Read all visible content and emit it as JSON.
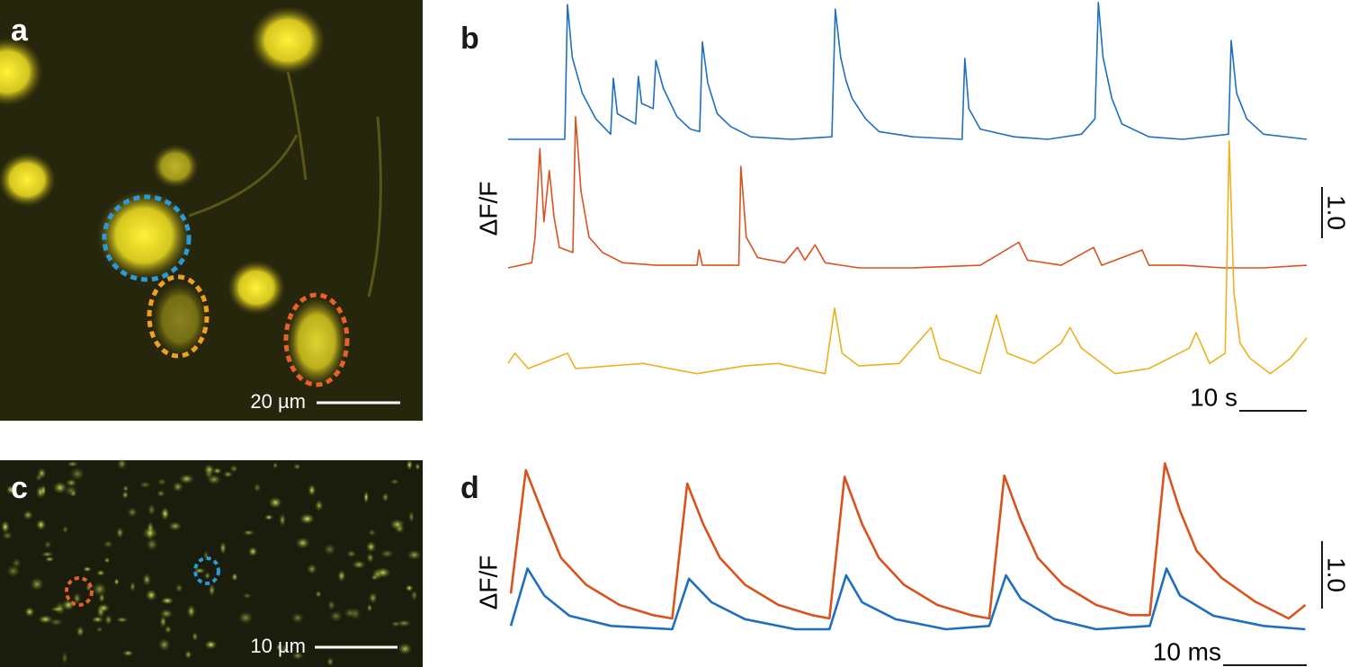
{
  "images": [
    {
      "label": "a",
      "scale_bar": "20 µm"
    },
    {
      "label": "c",
      "scale_bar": "10 µm"
    }
  ],
  "chart_data": [
    {
      "type": "line",
      "panel_label": "b",
      "y_label": "ΔF/F",
      "y_scale": {
        "value": 1,
        "label": "1.0"
      },
      "x_scale": {
        "value": 10,
        "label": "10 s"
      },
      "series": [
        {
          "color": "#1f6fbf",
          "x": [
            0,
            8.4,
            8.8,
            9.5,
            11,
            13,
            15.2,
            15.6,
            16.2,
            18.9,
            19.3,
            19.8,
            21.5,
            21.9,
            23,
            25,
            27,
            28.4,
            28.8,
            29.6,
            31,
            33,
            36,
            42,
            48,
            48.5,
            49.3,
            50.1,
            51,
            53,
            55,
            60,
            67.3,
            67.7,
            68.3,
            70,
            75,
            80,
            85,
            87,
            87.5,
            88.2,
            89.5,
            91,
            95,
            100,
            106.8,
            107.2,
            108,
            109.5,
            112,
            118.4
          ],
          "values": [
            0,
            0,
            2.63,
            1.6,
            0.9,
            0.4,
            0.1,
            1.19,
            0.5,
            0.3,
            1.23,
            0.7,
            0.6,
            1.54,
            1.0,
            0.45,
            0.2,
            0.15,
            1.9,
            1.1,
            0.5,
            0.25,
            0.05,
            0,
            0.05,
            2.54,
            1.6,
            1.14,
            0.8,
            0.4,
            0.15,
            0.05,
            0,
            1.58,
            0.6,
            0.2,
            0.05,
            0,
            0.1,
            0.4,
            2.67,
            1.6,
            0.8,
            0.3,
            0.05,
            0,
            0.1,
            1.93,
            0.9,
            0.4,
            0.1,
            0
          ]
        },
        {
          "color": "#d9531e",
          "x": [
            0,
            3.5,
            4.0,
            4.7,
            5.3,
            6.1,
            6.8,
            7.6,
            9.6,
            10,
            10.8,
            12,
            14,
            17,
            22,
            28,
            28.3,
            28.8,
            34.2,
            34.5,
            35.3,
            37,
            41,
            42.9,
            44,
            45.5,
            47,
            52,
            60,
            70,
            75.7,
            77,
            82,
            86.8,
            88,
            94,
            95,
            100,
            106,
            112,
            118.4
          ],
          "values": [
            0,
            0.1,
            0.6,
            2.33,
            0.9,
            1.9,
            1.0,
            0.4,
            0.3,
            2.95,
            1.5,
            0.6,
            0.3,
            0.1,
            0.05,
            0.05,
            0.35,
            0.05,
            0.05,
            1.98,
            0.6,
            0.2,
            0.1,
            0.4,
            0.15,
            0.45,
            0.1,
            0,
            0,
            0.05,
            0.5,
            0.15,
            0.05,
            0.4,
            0.05,
            0.35,
            0.05,
            0.05,
            0,
            0,
            0.05
          ]
        },
        {
          "color": "#edb120",
          "x": [
            0,
            1,
            3,
            8.8,
            10,
            20,
            28,
            35,
            40,
            47,
            48.4,
            49.5,
            52,
            58,
            62.7,
            64,
            70,
            72.4,
            74,
            78,
            82,
            83.3,
            85,
            90,
            95,
            101,
            102,
            104,
            106.3,
            106.9,
            107.6,
            108.5,
            110,
            113,
            116,
            118.4
          ],
          "values": [
            0.1,
            0.3,
            0,
            0.3,
            0,
            0.1,
            -0.1,
            0.05,
            0.1,
            -0.1,
            1.18,
            0.3,
            0.05,
            0.1,
            0.8,
            0.2,
            -0.1,
            1.05,
            0.3,
            0.1,
            0.5,
            0.8,
            0.4,
            -0.1,
            0,
            0.4,
            0.7,
            0.1,
            0.3,
            4.44,
            1.5,
            0.5,
            0.2,
            -0.1,
            0.2,
            0.6
          ]
        }
      ]
    },
    {
      "type": "line",
      "panel_label": "d",
      "y_label": "ΔF/F",
      "y_scale": {
        "value": 1,
        "label": "1.0"
      },
      "x_scale": {
        "value": 10,
        "label": "10 ms"
      },
      "series": [
        {
          "color": "#d9531e",
          "x": [
            0,
            1.8,
            4,
            6,
            9,
            13,
            17,
            19.3,
            21.1,
            23,
            25,
            28,
            32,
            36,
            38.1,
            39.9,
            42,
            44,
            47,
            51,
            55,
            57.2,
            59.0,
            61,
            63,
            66,
            70,
            74,
            76.4,
            78.2,
            80,
            82,
            85,
            89,
            93,
            95
          ],
          "values": [
            0.37,
            2.2,
            1.5,
            0.9,
            0.5,
            0.2,
            0.05,
            0,
            2.0,
            1.4,
            0.9,
            0.5,
            0.2,
            0.05,
            0,
            2.1,
            1.4,
            0.9,
            0.5,
            0.2,
            0.05,
            0,
            2.12,
            1.45,
            0.9,
            0.5,
            0.2,
            0.05,
            0.05,
            2.3,
            1.6,
            1.0,
            0.6,
            0.25,
            0.0,
            0.2
          ]
        },
        {
          "color": "#1f6fbf",
          "x": [
            0,
            2.0,
            4,
            7,
            12,
            19.3,
            21.3,
            24,
            28,
            34,
            38.1,
            40.1,
            42,
            46,
            52,
            57.2,
            59.2,
            61,
            65,
            70,
            76.4,
            78.4,
            80,
            84,
            90,
            95
          ],
          "values": [
            0.05,
            0.9,
            0.5,
            0.2,
            0.05,
            0,
            0.75,
            0.4,
            0.15,
            0,
            0,
            0.8,
            0.4,
            0.15,
            0,
            0.05,
            0.8,
            0.45,
            0.15,
            0,
            0.05,
            0.9,
            0.5,
            0.2,
            0.05,
            0
          ]
        }
      ]
    }
  ]
}
